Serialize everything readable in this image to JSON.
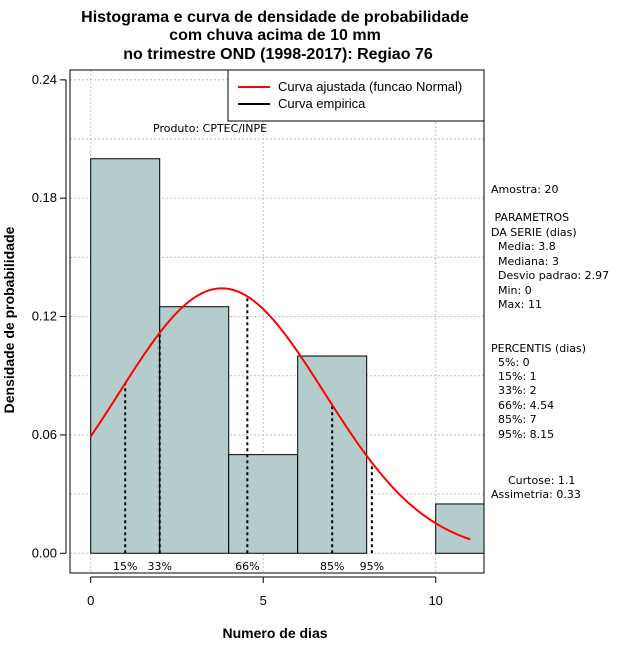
{
  "chart_data": {
    "type": "bar",
    "title_lines": [
      "Histograma e curva de densidade de probabilidade",
      "com chuva acima de 10 mm",
      "no trimestre OND (1998-2017): Regiao 76"
    ],
    "xlabel": "Numero de dias",
    "ylabel": "Densidade de probabilidade",
    "xlim": [
      -0.6,
      11.4
    ],
    "ylim": [
      -0.01,
      0.245
    ],
    "x_ticks": [
      0,
      5,
      10
    ],
    "y_ticks": [
      0.0,
      0.06,
      0.12,
      0.18,
      0.24
    ],
    "y_tick_labels": [
      "0.00",
      "0.06",
      "0.12",
      "0.18",
      "0.24"
    ],
    "grid": true,
    "bins": [
      {
        "x0": 0,
        "x1": 2,
        "density": 0.2
      },
      {
        "x0": 2,
        "x1": 4,
        "density": 0.125
      },
      {
        "x0": 4,
        "x1": 6,
        "density": 0.05
      },
      {
        "x0": 6,
        "x1": 8,
        "density": 0.1
      },
      {
        "x0": 8,
        "x1": 10,
        "density": 0.0
      },
      {
        "x0": 10,
        "x1": 11.4,
        "density": 0.025
      }
    ],
    "bar_color": "#b5cccc",
    "normal_curve": {
      "mean": 3.8,
      "sd": 2.97,
      "x_from": 0,
      "x_to": 11,
      "color": "#ff0000"
    },
    "percentile_lines": [
      {
        "x": 1,
        "label": "15%"
      },
      {
        "x": 2,
        "label": "33%"
      },
      {
        "x": 4.54,
        "label": "66%"
      },
      {
        "x": 7,
        "label": "85%"
      },
      {
        "x": 8.15,
        "label": "95%"
      }
    ],
    "legend": {
      "position": "top-right",
      "entries": [
        {
          "label": "Curva ajustada (funcao Normal)",
          "color": "#ff0000"
        },
        {
          "label": "Curva empirica",
          "color": "#000000"
        }
      ]
    },
    "annotation": "Produto: CPTEC/INPE",
    "side_text": {
      "amostra": "Amostra: 20",
      "param_header": [
        " PARAMETROS",
        "DA SERIE (dias)"
      ],
      "params": [
        "Media: 3.8",
        "Mediana: 3",
        "Desvio padrao: 2.97",
        "Min: 0",
        "Max: 11"
      ],
      "perc_header": "PERCENTIS (dias)",
      "percentis": [
        "5%: 0",
        "15%: 1",
        "33%: 2",
        "66%: 4.54",
        "85%: 7",
        "95%: 8.15"
      ],
      "curtose": "Curtose: 1.1",
      "assimetria": "Assimetria: 0.33"
    }
  }
}
